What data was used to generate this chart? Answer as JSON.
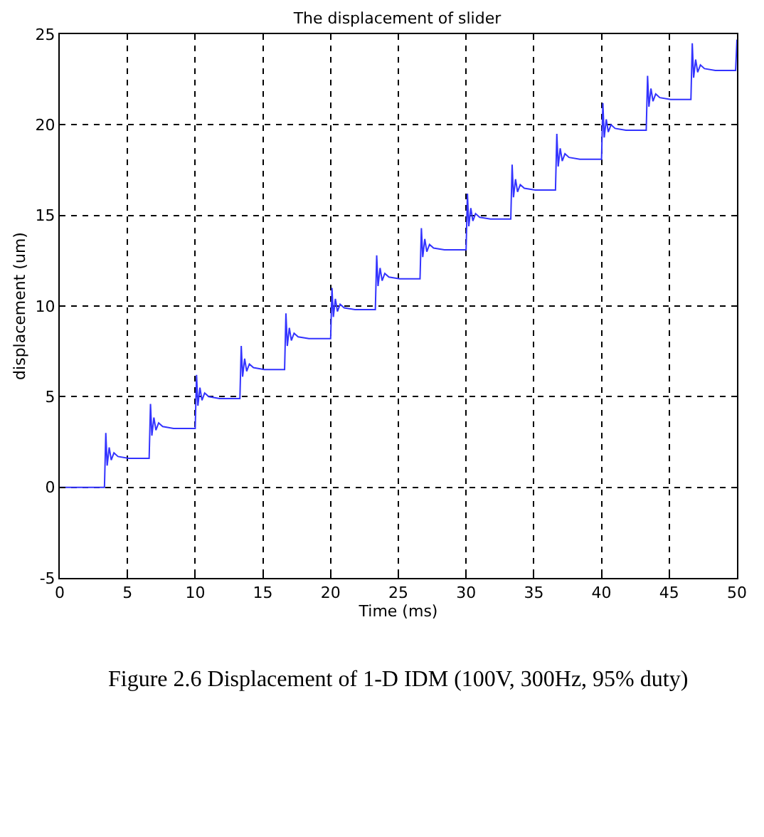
{
  "chart_data": {
    "type": "line",
    "title": "The displacement of slider",
    "xlabel": "Time (ms)",
    "ylabel": "displacement (um)",
    "annotations": [
      "Figure 2.6 Displacement of 1-D IDM (100V, 300Hz, 95% duty)"
    ],
    "xlim": [
      0,
      50
    ],
    "xticks": [
      0,
      5,
      10,
      15,
      20,
      25,
      30,
      35,
      40,
      45,
      50
    ],
    "ylim": [
      -5,
      25
    ],
    "yticks": [
      -5,
      0,
      5,
      10,
      15,
      20,
      25
    ],
    "grid": true,
    "marker": "none",
    "line_style": "solid",
    "series": [
      {
        "color": "#3333ff",
        "x": [
          0,
          3.3,
          3.4,
          3.5,
          3.65,
          3.8,
          4.0,
          4.3,
          5.1,
          6.6,
          6.7,
          6.8,
          6.95,
          7.1,
          7.3,
          7.6,
          8.4,
          10.0,
          10.1,
          10.2,
          10.35,
          10.5,
          10.7,
          11.0,
          11.8,
          13.3,
          13.4,
          13.5,
          13.65,
          13.8,
          14.0,
          14.3,
          15.1,
          16.6,
          16.7,
          16.8,
          16.95,
          17.1,
          17.3,
          17.6,
          18.4,
          20.0,
          20.1,
          20.2,
          20.35,
          20.5,
          20.7,
          21.0,
          21.8,
          23.3,
          23.4,
          23.5,
          23.65,
          23.8,
          24.0,
          24.3,
          25.1,
          26.6,
          26.7,
          26.8,
          26.95,
          27.1,
          27.3,
          27.6,
          28.4,
          30.0,
          30.1,
          30.2,
          30.35,
          30.5,
          30.7,
          31.0,
          31.8,
          33.3,
          33.4,
          33.5,
          33.65,
          33.8,
          34.0,
          34.3,
          35.1,
          36.6,
          36.7,
          36.8,
          36.95,
          37.1,
          37.3,
          37.6,
          38.4,
          40.0,
          40.1,
          40.2,
          40.35,
          40.5,
          40.7,
          41.0,
          41.8,
          43.3,
          43.4,
          43.5,
          43.65,
          43.8,
          44.0,
          44.3,
          45.1,
          46.6,
          46.7,
          46.8,
          46.95,
          47.1,
          47.3,
          47.6,
          48.4,
          49.9,
          50.0
        ],
        "values": [
          0,
          0,
          3.0,
          1.2,
          2.2,
          1.5,
          1.9,
          1.7,
          1.6,
          1.6,
          4.6,
          2.85,
          3.85,
          3.15,
          3.55,
          3.35,
          3.25,
          3.25,
          6.2,
          4.5,
          5.5,
          4.8,
          5.2,
          5.0,
          4.9,
          4.9,
          7.8,
          6.1,
          7.1,
          6.4,
          6.8,
          6.6,
          6.5,
          6.5,
          9.6,
          7.8,
          8.8,
          8.1,
          8.5,
          8.3,
          8.2,
          8.2,
          11.0,
          9.4,
          10.4,
          9.7,
          10.1,
          9.9,
          9.8,
          9.8,
          12.8,
          11.1,
          12.1,
          11.4,
          11.8,
          11.6,
          11.5,
          11.5,
          14.3,
          12.7,
          13.7,
          13.0,
          13.4,
          13.2,
          13.1,
          13.1,
          16.2,
          14.4,
          15.4,
          14.7,
          15.1,
          14.9,
          14.8,
          14.8,
          17.8,
          16.0,
          17.0,
          16.3,
          16.7,
          16.5,
          16.4,
          16.4,
          19.5,
          17.7,
          18.7,
          18.0,
          18.4,
          18.2,
          18.1,
          18.1,
          21.2,
          19.3,
          20.3,
          19.6,
          20.0,
          19.8,
          19.7,
          19.7,
          22.7,
          21.0,
          22.0,
          21.3,
          21.7,
          21.5,
          21.4,
          21.4,
          24.5,
          22.6,
          23.6,
          22.9,
          23.3,
          23.1,
          23.0,
          23.0,
          24.7
        ]
      }
    ]
  }
}
